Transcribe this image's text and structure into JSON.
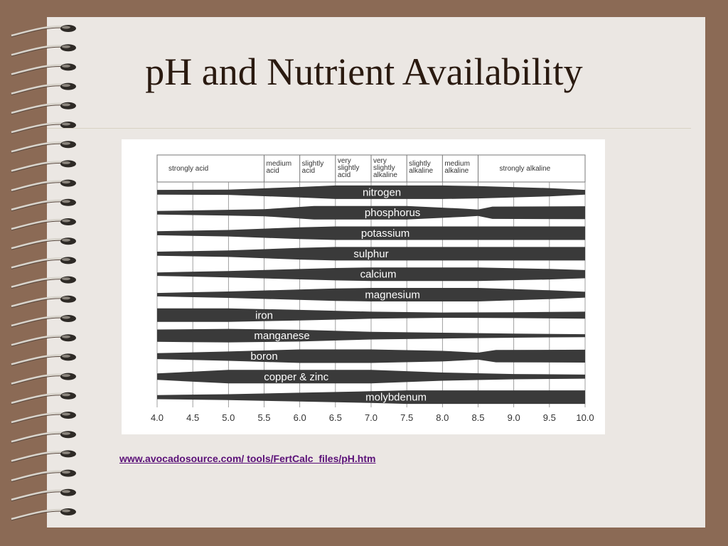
{
  "slide": {
    "title": "pH and Nutrient Availability",
    "source_link": "www.avocadosource.com/ tools/FertCalc_files/pH.htm"
  },
  "chart_data": {
    "type": "band-chart",
    "title": "",
    "xlabel": "",
    "ylabel": "",
    "xlim": [
      4.0,
      10.0
    ],
    "x_ticks": [
      "4.0",
      "4.5",
      "5.0",
      "5.5",
      "6.0",
      "6.5",
      "7.0",
      "7.5",
      "8.0",
      "8.5",
      "9.0",
      "9.5",
      "10.0"
    ],
    "grid": true,
    "ph_ranges": [
      {
        "label": [
          "strongly acid"
        ],
        "from": 4.0,
        "to": 5.5
      },
      {
        "label": [
          "medium",
          "acid"
        ],
        "from": 5.5,
        "to": 6.0
      },
      {
        "label": [
          "slightly",
          "acid"
        ],
        "from": 6.0,
        "to": 6.5
      },
      {
        "label": [
          "very",
          "slightly",
          "acid"
        ],
        "from": 6.5,
        "to": 7.0
      },
      {
        "label": [
          "very",
          "slightly",
          "alkaline"
        ],
        "from": 7.0,
        "to": 7.5
      },
      {
        "label": [
          "slightly",
          "alkaline"
        ],
        "from": 7.5,
        "to": 8.0
      },
      {
        "label": [
          "medium",
          "alkaline"
        ],
        "from": 8.0,
        "to": 8.5
      },
      {
        "label": [
          "strongly alkaline"
        ],
        "from": 8.5,
        "to": 10.0
      }
    ],
    "series": [
      {
        "name": "nitrogen",
        "label_at": 7.15,
        "availability": [
          [
            4.0,
            0.25
          ],
          [
            5.0,
            0.3
          ],
          [
            6.0,
            0.75
          ],
          [
            6.5,
            1.0
          ],
          [
            8.0,
            1.0
          ],
          [
            8.5,
            0.9
          ],
          [
            9.5,
            0.55
          ],
          [
            10.0,
            0.25
          ]
        ]
      },
      {
        "name": "phosphorus",
        "label_at": 7.3,
        "availability": [
          [
            4.0,
            0.15
          ],
          [
            5.0,
            0.35
          ],
          [
            5.5,
            0.45
          ],
          [
            6.2,
            1.0
          ],
          [
            7.5,
            1.0
          ],
          [
            8.3,
            0.55
          ],
          [
            8.5,
            0.4
          ],
          [
            8.7,
            0.9
          ],
          [
            10.0,
            0.95
          ]
        ]
      },
      {
        "name": "potassium",
        "label_at": 7.2,
        "availability": [
          [
            4.0,
            0.2
          ],
          [
            5.0,
            0.4
          ],
          [
            6.0,
            0.85
          ],
          [
            6.5,
            1.0
          ],
          [
            10.0,
            1.0
          ]
        ]
      },
      {
        "name": "sulphur",
        "label_at": 7.0,
        "availability": [
          [
            4.0,
            0.2
          ],
          [
            5.0,
            0.4
          ],
          [
            6.0,
            0.85
          ],
          [
            6.5,
            1.0
          ],
          [
            10.0,
            1.0
          ]
        ]
      },
      {
        "name": "calcium",
        "label_at": 7.1,
        "availability": [
          [
            4.0,
            0.15
          ],
          [
            5.0,
            0.4
          ],
          [
            6.5,
            0.9
          ],
          [
            7.0,
            1.0
          ],
          [
            8.5,
            1.0
          ],
          [
            9.5,
            0.75
          ],
          [
            10.0,
            0.55
          ]
        ]
      },
      {
        "name": "magnesium",
        "label_at": 7.3,
        "availability": [
          [
            4.0,
            0.15
          ],
          [
            5.0,
            0.4
          ],
          [
            6.5,
            0.9
          ],
          [
            7.0,
            1.0
          ],
          [
            8.5,
            1.0
          ],
          [
            9.5,
            0.6
          ],
          [
            10.0,
            0.35
          ]
        ]
      },
      {
        "name": "iron",
        "label_at": 5.5,
        "availability": [
          [
            4.0,
            1.0
          ],
          [
            5.0,
            1.0
          ],
          [
            6.0,
            0.75
          ],
          [
            7.0,
            0.45
          ],
          [
            8.0,
            0.3
          ],
          [
            9.0,
            0.35
          ],
          [
            10.0,
            0.45
          ]
        ]
      },
      {
        "name": "manganese",
        "label_at": 5.75,
        "availability": [
          [
            4.0,
            0.9
          ],
          [
            5.0,
            1.0
          ],
          [
            6.0,
            0.85
          ],
          [
            7.0,
            0.5
          ],
          [
            8.0,
            0.35
          ],
          [
            9.0,
            0.2
          ],
          [
            10.0,
            0.1
          ]
        ]
      },
      {
        "name": "boron",
        "label_at": 5.5,
        "availability": [
          [
            4.0,
            0.35
          ],
          [
            5.0,
            0.65
          ],
          [
            6.0,
            1.0
          ],
          [
            7.0,
            1.0
          ],
          [
            8.0,
            0.75
          ],
          [
            8.5,
            0.45
          ],
          [
            8.75,
            0.9
          ],
          [
            10.0,
            0.95
          ]
        ]
      },
      {
        "name": "copper & zinc",
        "label_at": 5.95,
        "availability": [
          [
            4.0,
            0.4
          ],
          [
            5.0,
            1.0
          ],
          [
            7.0,
            1.0
          ],
          [
            8.0,
            0.55
          ],
          [
            9.0,
            0.3
          ],
          [
            10.0,
            0.2
          ]
        ]
      },
      {
        "name": "molybdenum",
        "label_at": 7.35,
        "availability": [
          [
            4.0,
            0.2
          ],
          [
            5.0,
            0.35
          ],
          [
            6.0,
            0.6
          ],
          [
            7.0,
            0.85
          ],
          [
            7.5,
            1.0
          ],
          [
            10.0,
            1.0
          ]
        ]
      }
    ]
  },
  "colors": {
    "frame": "#8b6a55",
    "slide": "#ebe7e3",
    "title": "#2a1a10",
    "band": "#3a3a3a",
    "link": "#5a1078"
  },
  "icons": {
    "binding": "spiral-ring-icon"
  }
}
